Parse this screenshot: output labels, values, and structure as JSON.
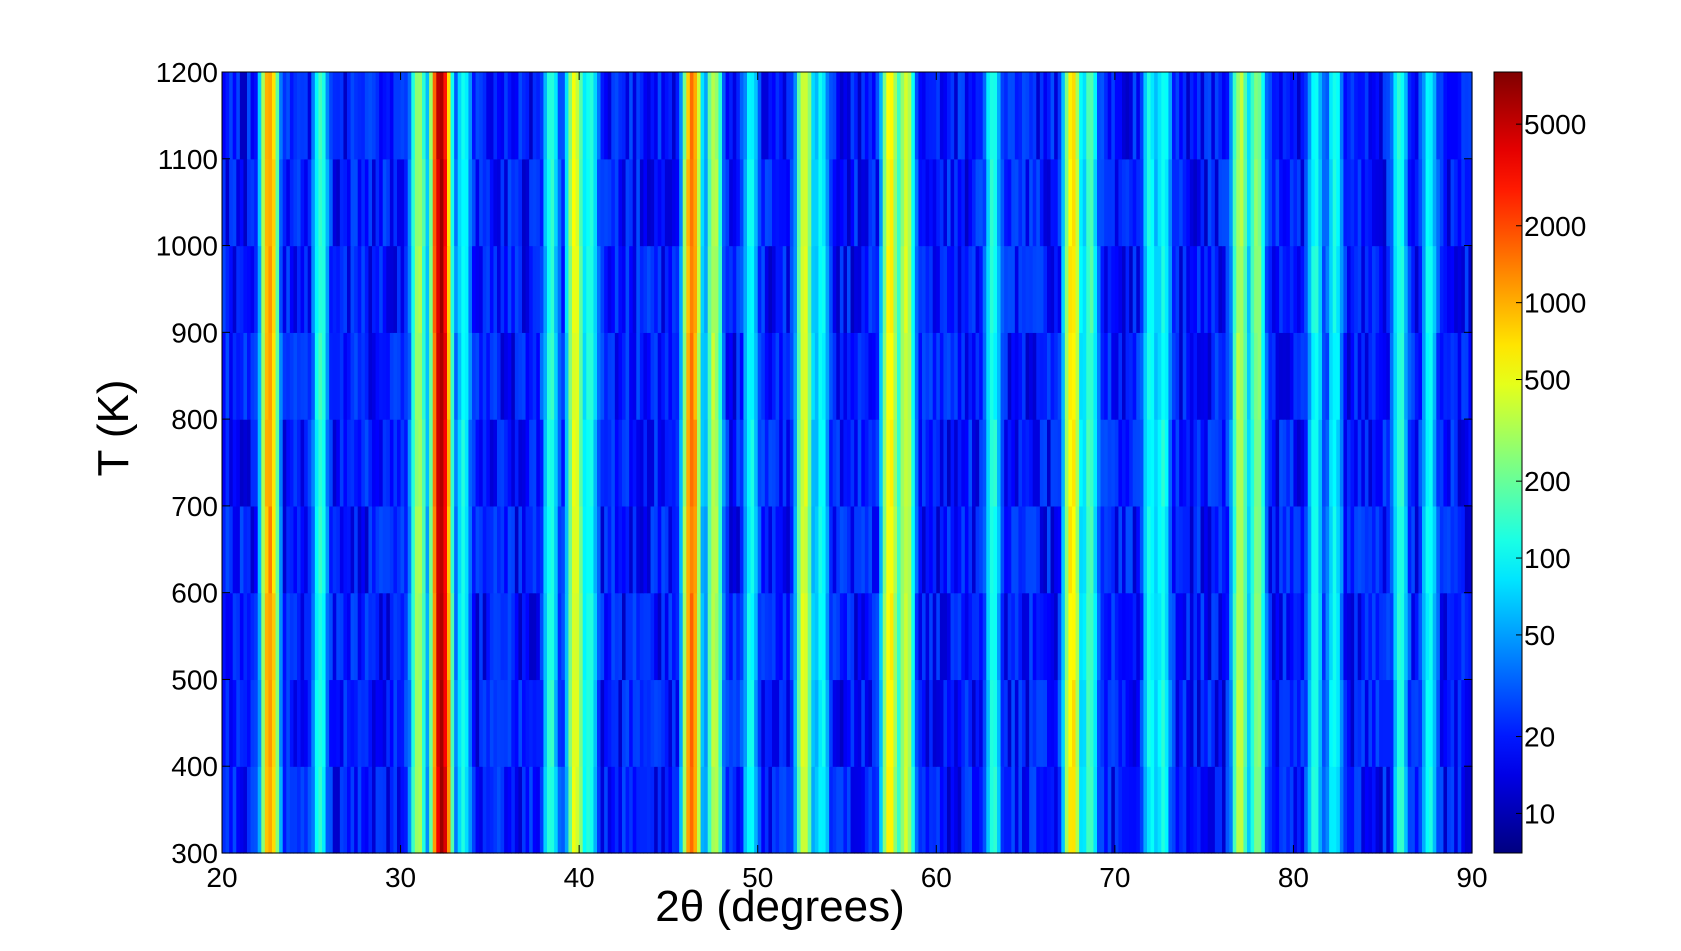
{
  "chart_data": {
    "type": "heatmap",
    "title": "",
    "xlabel": "2θ (degrees)",
    "ylabel": "T (K)",
    "xlim": [
      20,
      90
    ],
    "ylim": [
      300,
      1200
    ],
    "x_ticks": [
      20,
      30,
      40,
      50,
      60,
      70,
      80,
      90
    ],
    "y_ticks": [
      300,
      400,
      500,
      600,
      700,
      800,
      900,
      1000,
      1100,
      1200
    ],
    "temperature_rows": [
      300,
      400,
      500,
      600,
      700,
      800,
      900,
      1000,
      1100
    ],
    "colorbar": {
      "scale": "log",
      "colormap": "jet",
      "range": [
        7,
        8000
      ],
      "ticks": [
        10,
        20,
        50,
        100,
        200,
        500,
        1000,
        2000,
        5000
      ]
    },
    "background_intensity": 20,
    "peaks": [
      {
        "two_theta": 22.7,
        "intensity": 1200
      },
      {
        "two_theta": 25.5,
        "intensity": 120
      },
      {
        "two_theta": 31.0,
        "intensity": 300
      },
      {
        "two_theta": 32.3,
        "intensity": 6000
      },
      {
        "two_theta": 33.5,
        "intensity": 90
      },
      {
        "two_theta": 38.4,
        "intensity": 120
      },
      {
        "two_theta": 39.8,
        "intensity": 500
      },
      {
        "two_theta": 40.6,
        "intensity": 110
      },
      {
        "two_theta": 46.3,
        "intensity": 1500
      },
      {
        "two_theta": 47.6,
        "intensity": 350
      },
      {
        "two_theta": 49.6,
        "intensity": 90
      },
      {
        "two_theta": 52.6,
        "intensity": 450
      },
      {
        "two_theta": 53.6,
        "intensity": 90
      },
      {
        "two_theta": 57.4,
        "intensity": 600
      },
      {
        "two_theta": 58.3,
        "intensity": 400
      },
      {
        "two_theta": 63.2,
        "intensity": 110
      },
      {
        "two_theta": 67.6,
        "intensity": 700
      },
      {
        "two_theta": 68.6,
        "intensity": 150
      },
      {
        "two_theta": 72.0,
        "intensity": 90
      },
      {
        "two_theta": 72.7,
        "intensity": 100
      },
      {
        "two_theta": 77.0,
        "intensity": 350
      },
      {
        "two_theta": 78.0,
        "intensity": 250
      },
      {
        "two_theta": 81.2,
        "intensity": 100
      },
      {
        "two_theta": 82.3,
        "intensity": 90
      },
      {
        "two_theta": 86.0,
        "intensity": 120
      },
      {
        "two_theta": 87.6,
        "intensity": 90
      }
    ]
  }
}
